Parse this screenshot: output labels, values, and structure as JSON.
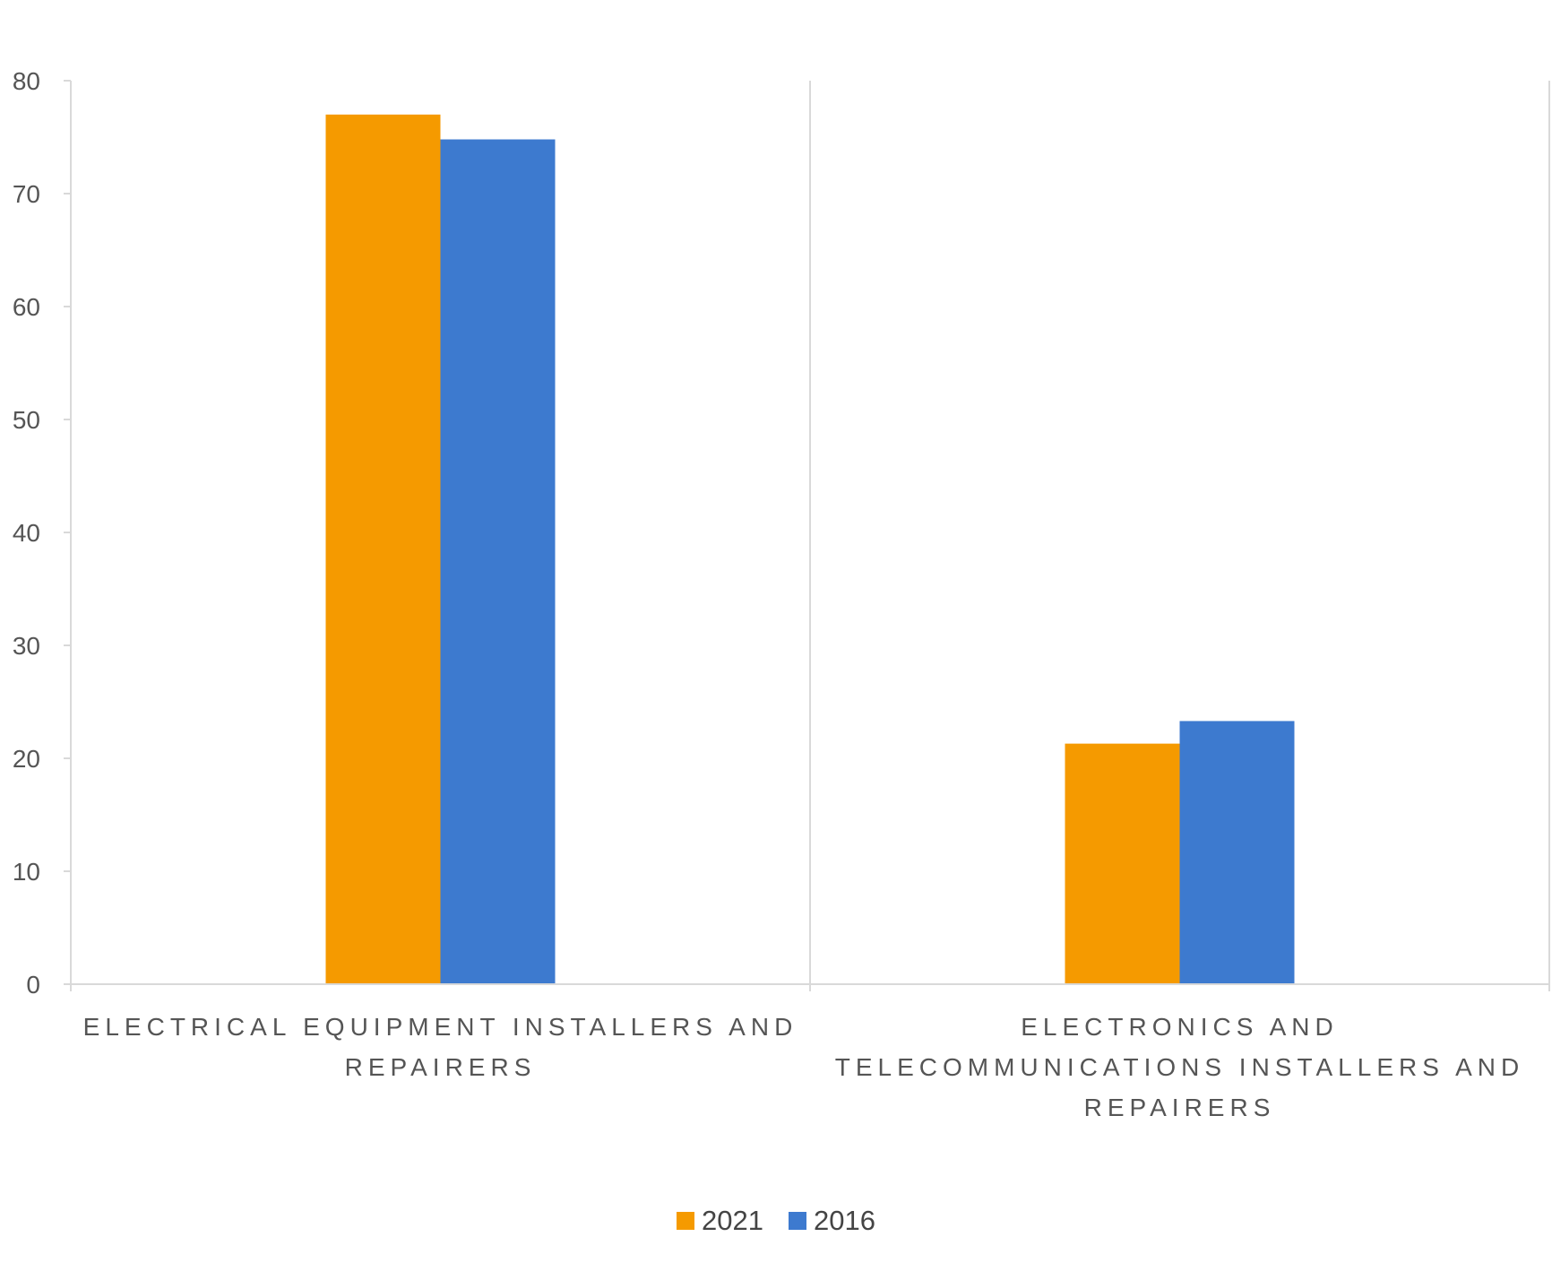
{
  "chart_data": {
    "type": "bar",
    "title": "",
    "xlabel": "",
    "ylabel": "",
    "ylim": [
      0,
      80
    ],
    "yticks": [
      0,
      10,
      20,
      30,
      40,
      50,
      60,
      70,
      80
    ],
    "grid": false,
    "legend_position": "bottom",
    "categories": [
      [
        "ELECTRICAL EQUIPMENT INSTALLERS AND",
        "REPAIRERS"
      ],
      [
        "ELECTRONICS AND",
        "TELECOMMUNICATIONS INSTALLERS AND",
        "REPAIRERS"
      ]
    ],
    "series": [
      {
        "name": "2021",
        "color": "#F59A00",
        "values": [
          77,
          21.3
        ]
      },
      {
        "name": "2016",
        "color": "#3D7ACF",
        "values": [
          74.8,
          23.3
        ]
      }
    ]
  }
}
